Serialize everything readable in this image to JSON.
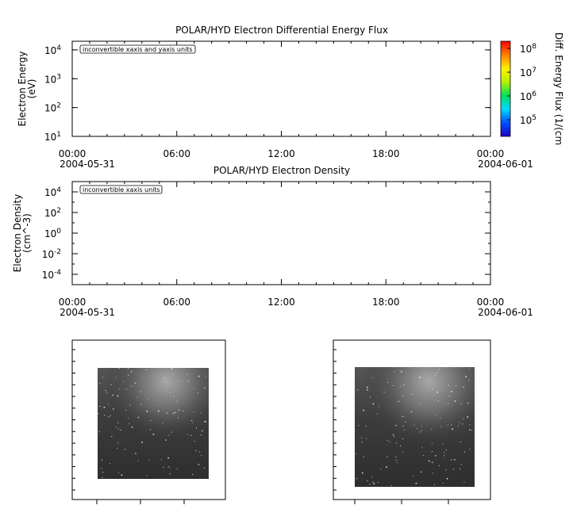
{
  "chart_data": [
    {
      "type": "line",
      "title": "POLAR/HYD  Electron Differential Energy Flux",
      "ylabel_line1": "Electron Energy",
      "ylabel_line2": "(eV)",
      "yscale": "log",
      "ylim": [
        10,
        20000
      ],
      "y_ticks": [
        {
          "base": "10",
          "exp": "1"
        },
        {
          "base": "10",
          "exp": "2"
        },
        {
          "base": "10",
          "exp": "3"
        },
        {
          "base": "10",
          "exp": "4"
        }
      ],
      "y_tick_values": [
        10,
        100,
        1000,
        10000
      ],
      "x_ticks": [
        "00:00",
        "06:00",
        "12:00",
        "18:00",
        "00:00"
      ],
      "x_tick_hours": [
        0,
        6,
        12,
        18,
        24
      ],
      "xlim_hours": [
        0,
        24
      ],
      "date_left": "2004-05-31",
      "date_right": "2004-06-01",
      "annotation": "inconvertible xaxis and yaxis units",
      "series": [],
      "colorbar": {
        "label": "Diff. Energy Flux (1/(cm",
        "scale": "log",
        "range": [
          20000,
          200000000
        ],
        "ticks": [
          {
            "base": "10",
            "exp": "5"
          },
          {
            "base": "10",
            "exp": "6"
          },
          {
            "base": "10",
            "exp": "7"
          },
          {
            "base": "10",
            "exp": "8"
          }
        ],
        "tick_values": [
          100000,
          1000000,
          10000000,
          100000000
        ],
        "colors": [
          "#1f00c8",
          "#0050ff",
          "#00d8ff",
          "#00e060",
          "#b8f000",
          "#fff000",
          "#ff8000",
          "#ff0000"
        ]
      }
    },
    {
      "type": "line",
      "title": "POLAR/HYD  Electron Density",
      "ylabel_line1": "Electron Density",
      "ylabel_line2": "(cm^-3)",
      "yscale": "log",
      "ylim": [
        1e-05,
        100000
      ],
      "y_ticks": [
        {
          "base": "10",
          "exp": "-4"
        },
        {
          "base": "10",
          "exp": "-2"
        },
        {
          "base": "10",
          "exp": "0"
        },
        {
          "base": "10",
          "exp": "2"
        },
        {
          "base": "10",
          "exp": "4"
        }
      ],
      "y_tick_values": [
        0.0001,
        0.01,
        1,
        100,
        10000
      ],
      "x_ticks": [
        "00:00",
        "06:00",
        "12:00",
        "18:00",
        "00:00"
      ],
      "x_tick_hours": [
        0,
        6,
        12,
        18,
        24
      ],
      "xlim_hours": [
        0,
        24
      ],
      "date_left": "2004-05-31",
      "date_right": "2004-06-01",
      "annotation": "inconvertible xaxis units",
      "series": []
    }
  ],
  "images": [
    {
      "kind": "auroral-image",
      "glow": "top-right"
    },
    {
      "kind": "auroral-image",
      "glow": "top-right"
    }
  ]
}
